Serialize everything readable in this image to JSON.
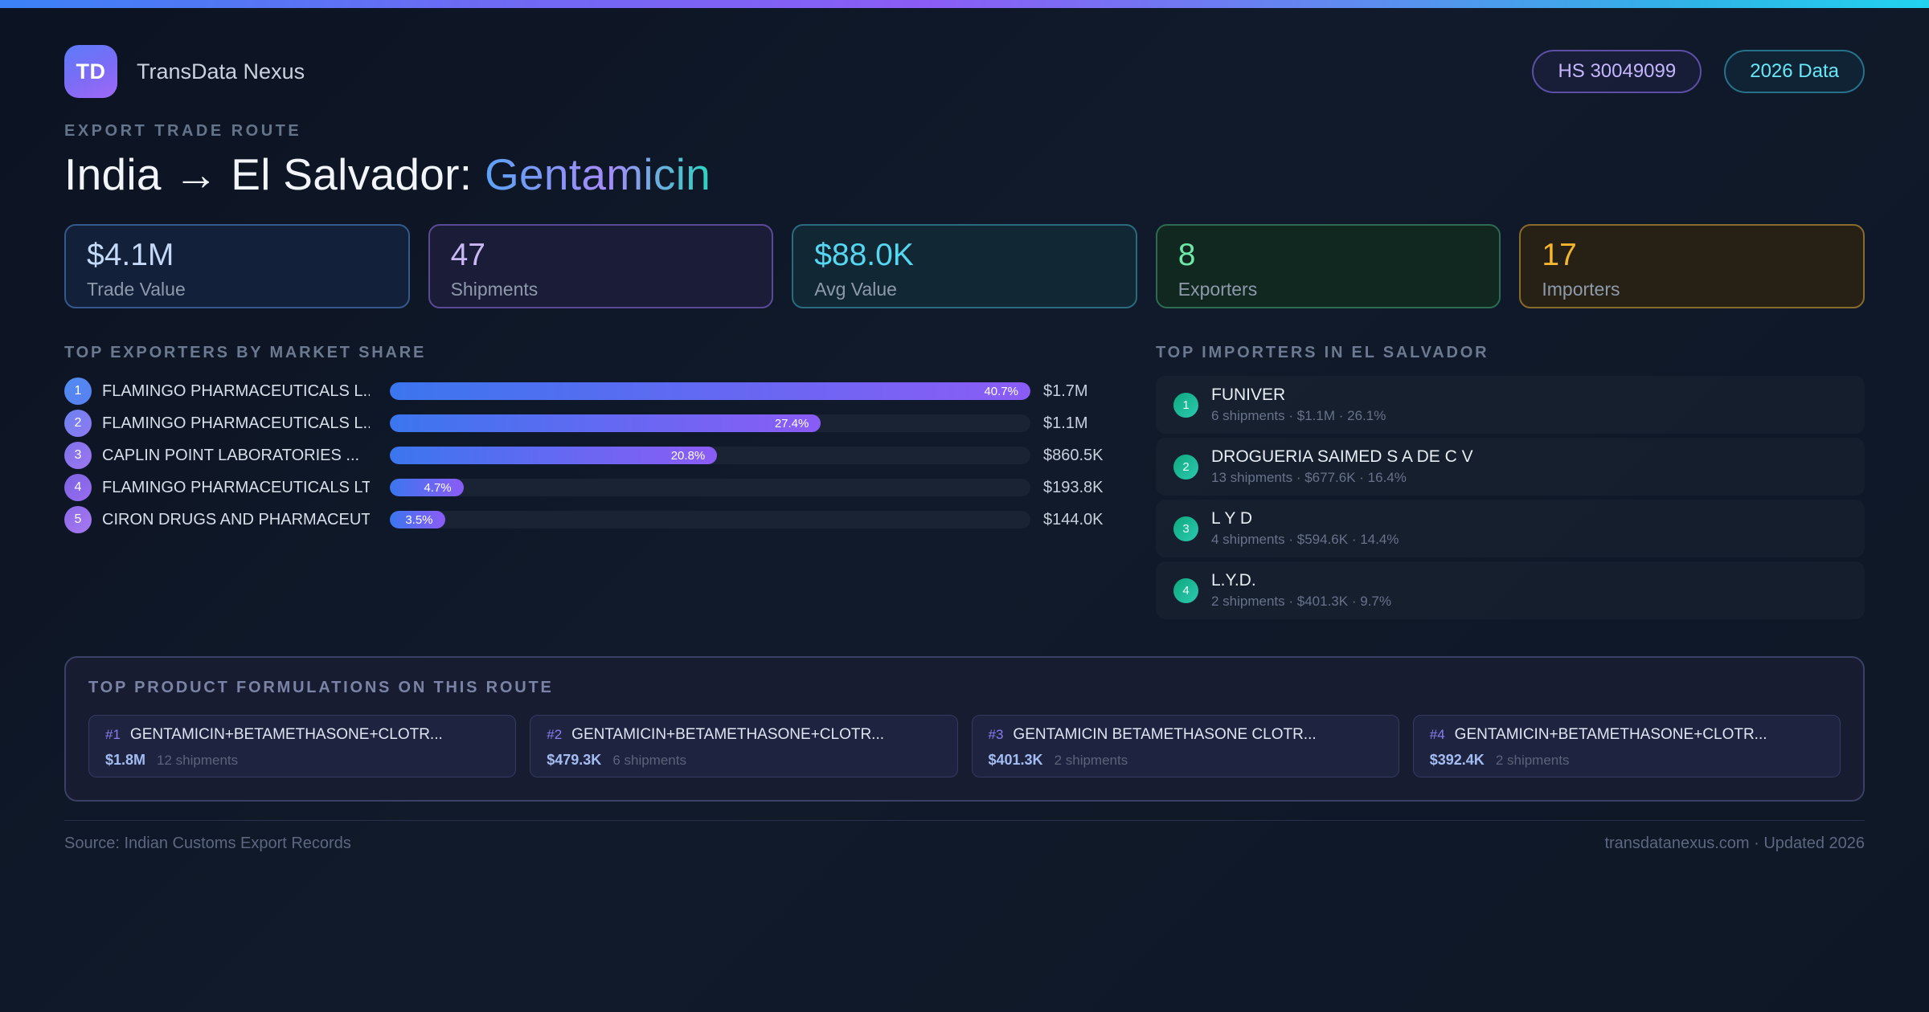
{
  "colors": {
    "accent_blue": "#3b82f6",
    "accent_purple": "#8b5cf6",
    "accent_cyan": "#22d3ee",
    "accent_green": "#34d399",
    "accent_amber": "#fbbf24",
    "background": "#0e1726"
  },
  "header": {
    "logo_text": "TD",
    "brand": "TransData Nexus",
    "hs_badge": "HS 30049099",
    "year_badge": "2026 Data"
  },
  "kicker": "EXPORT TRADE ROUTE",
  "title": {
    "route": "India → El Salvador: ",
    "product": "Gentamicin"
  },
  "stats": [
    {
      "value": "$4.1M",
      "label": "Trade Value",
      "theme": "t-blue"
    },
    {
      "value": "47",
      "label": "Shipments",
      "theme": "t-purple"
    },
    {
      "value": "$88.0K",
      "label": "Avg Value",
      "theme": "t-cyan"
    },
    {
      "value": "8",
      "label": "Exporters",
      "theme": "t-green"
    },
    {
      "value": "17",
      "label": "Importers",
      "theme": "t-amber"
    }
  ],
  "exporters": {
    "heading": "TOP EXPORTERS BY MARKET SHARE",
    "items": [
      {
        "rank": "1",
        "name": "FLAMINGO PHARMACEUTICALS L...",
        "share_label": "40.7%",
        "bar_pct": 100,
        "value": "$1.7M"
      },
      {
        "rank": "2",
        "name": "FLAMINGO PHARMACEUTICALS L...",
        "share_label": "27.4%",
        "bar_pct": 67.3,
        "value": "$1.1M"
      },
      {
        "rank": "3",
        "name": "CAPLIN POINT LABORATORIES ...",
        "share_label": "20.8%",
        "bar_pct": 51.1,
        "value": "$860.5K"
      },
      {
        "rank": "4",
        "name": "FLAMINGO PHARMACEUTICALS LTD",
        "share_label": "4.7%",
        "bar_pct": 11.5,
        "value": "$193.8K"
      },
      {
        "rank": "5",
        "name": "CIRON DRUGS AND PHARMACEUT...",
        "share_label": "3.5%",
        "bar_pct": 8.6,
        "value": "$144.0K"
      }
    ]
  },
  "importers": {
    "heading": "TOP IMPORTERS IN EL SALVADOR",
    "items": [
      {
        "rank": "1",
        "name": "FUNIVER",
        "meta": "6 shipments · $1.1M · 26.1%"
      },
      {
        "rank": "2",
        "name": "DROGUERIA SAIMED S A DE C V",
        "meta": "13 shipments · $677.6K · 16.4%"
      },
      {
        "rank": "3",
        "name": "L Y D",
        "meta": "4 shipments · $594.6K · 14.4%"
      },
      {
        "rank": "4",
        "name": "L.Y.D.",
        "meta": "2 shipments · $401.3K · 9.7%"
      }
    ]
  },
  "formulations": {
    "heading": "TOP PRODUCT FORMULATIONS ON THIS ROUTE",
    "items": [
      {
        "rank_label": "#1",
        "name": "GENTAMICIN+BETAMETHASONE+CLOTR...",
        "value": "$1.8M",
        "shipments": "12 shipments"
      },
      {
        "rank_label": "#2",
        "name": "GENTAMICIN+BETAMETHASONE+CLOTR...",
        "value": "$479.3K",
        "shipments": "6 shipments"
      },
      {
        "rank_label": "#3",
        "name": "GENTAMICIN BETAMETHASONE CLOTR...",
        "value": "$401.3K",
        "shipments": "2 shipments"
      },
      {
        "rank_label": "#4",
        "name": "GENTAMICIN+BETAMETHASONE+CLOTR...",
        "value": "$392.4K",
        "shipments": "2 shipments"
      }
    ]
  },
  "footer": {
    "source": "Source: Indian Customs Export Records",
    "site": "transdatanexus.com · Updated 2026"
  }
}
